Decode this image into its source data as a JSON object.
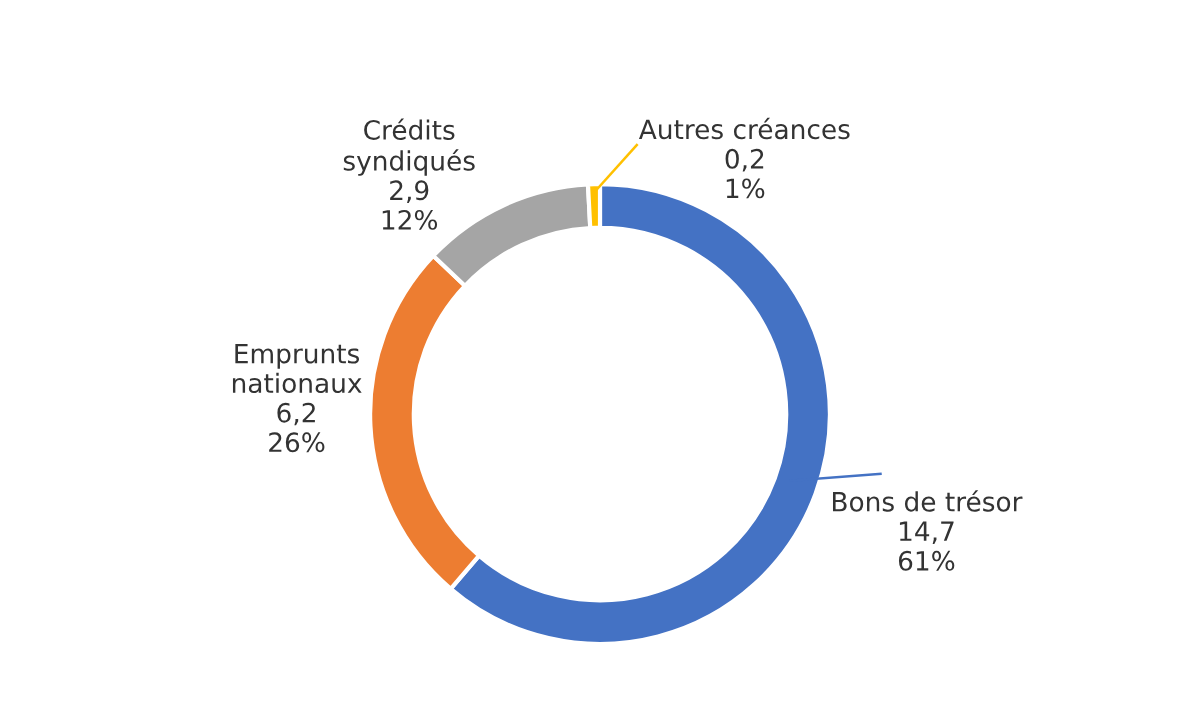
{
  "chart_data": {
    "type": "donut",
    "categories": [
      "Bons de trésor",
      "Emprunts nationaux",
      "Crédits syndiqués",
      "Autres créances"
    ],
    "values": [
      14.7,
      6.2,
      2.9,
      0.2
    ],
    "colors": [
      "#4472c4",
      "#ed7d31",
      "#a5a5a5",
      "#ffc000"
    ],
    "value_labels": [
      "14,7\n61%",
      "6,2\n26%",
      "2,9\n12%",
      "0,2\n1%"
    ],
    "legend": false
  }
}
